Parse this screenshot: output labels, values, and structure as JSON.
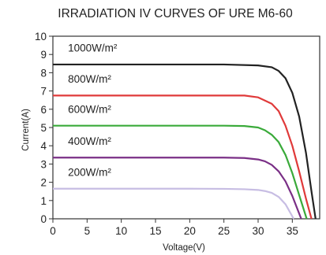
{
  "chart_data": {
    "type": "line",
    "title": "IRRADIATION IV CURVES OF URE M6-60",
    "xlabel": "Voltage(V)",
    "ylabel": "Current(A)",
    "xlim": [
      0,
      39
    ],
    "ylim": [
      0,
      10
    ],
    "x_ticks": [
      0,
      5,
      10,
      15,
      20,
      25,
      30,
      35
    ],
    "y_ticks": [
      0,
      1,
      2,
      3,
      4,
      5,
      6,
      7,
      8,
      9,
      10
    ],
    "grid": false,
    "series": [
      {
        "name": "1000W/m²",
        "color": "#222222",
        "x": [
          0,
          5,
          10,
          15,
          20,
          25,
          30,
          32,
          33,
          34,
          35,
          36,
          37,
          37.8,
          38.4
        ],
        "y": [
          8.45,
          8.45,
          8.45,
          8.45,
          8.45,
          8.45,
          8.4,
          8.3,
          8.1,
          7.7,
          6.9,
          5.6,
          3.6,
          1.5,
          0
        ]
      },
      {
        "name": "800W/m²",
        "color": "#e03a3a",
        "x": [
          0,
          5,
          10,
          15,
          20,
          25,
          28,
          30,
          32,
          33,
          34,
          35,
          36,
          37,
          37.8
        ],
        "y": [
          6.75,
          6.75,
          6.75,
          6.75,
          6.75,
          6.75,
          6.75,
          6.65,
          6.3,
          5.9,
          5.1,
          4.0,
          2.6,
          1.1,
          0
        ]
      },
      {
        "name": "600W/m²",
        "color": "#3aaa3a",
        "x": [
          0,
          5,
          10,
          15,
          20,
          25,
          28,
          30,
          31,
          32,
          33,
          34,
          35,
          36,
          37.1
        ],
        "y": [
          5.1,
          5.1,
          5.1,
          5.1,
          5.1,
          5.1,
          5.08,
          5.0,
          4.85,
          4.6,
          4.2,
          3.5,
          2.5,
          1.3,
          0
        ]
      },
      {
        "name": "400W/m²",
        "color": "#7a2f86",
        "x": [
          0,
          5,
          10,
          15,
          20,
          25,
          28,
          30,
          31,
          32,
          33,
          34,
          35,
          36.3
        ],
        "y": [
          3.35,
          3.35,
          3.35,
          3.35,
          3.35,
          3.35,
          3.33,
          3.25,
          3.15,
          2.95,
          2.6,
          2.05,
          1.25,
          0
        ]
      },
      {
        "name": "200W/m²",
        "color": "#c7bde3",
        "x": [
          0,
          5,
          10,
          15,
          20,
          25,
          28,
          30,
          31,
          32,
          33,
          34,
          35.2
        ],
        "y": [
          1.65,
          1.65,
          1.65,
          1.65,
          1.65,
          1.64,
          1.62,
          1.58,
          1.52,
          1.42,
          1.2,
          0.8,
          0
        ]
      }
    ]
  }
}
